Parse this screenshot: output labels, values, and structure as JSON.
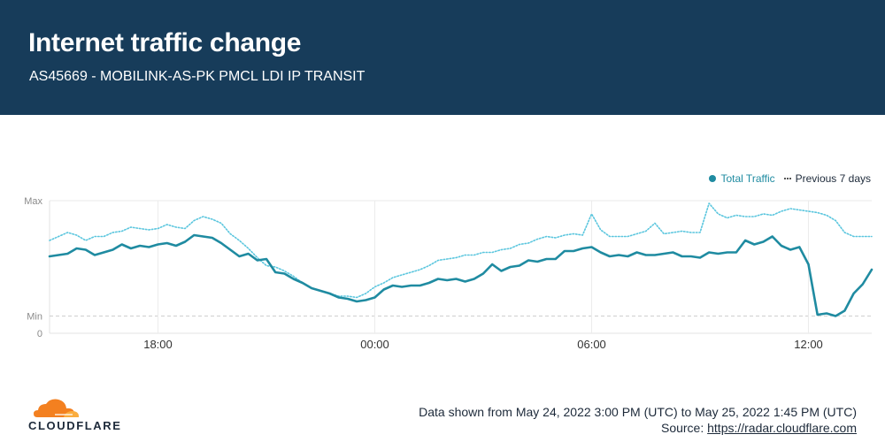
{
  "header": {
    "title": "Internet traffic change",
    "subtitle": "AS45669 - MOBILINK-AS-PK PMCL LDI IP TRANSIT"
  },
  "legend": {
    "items": [
      {
        "label": "Total Traffic",
        "color": "#1f8ba1",
        "style": "dot"
      },
      {
        "label": "Previous 7 days",
        "color": "#555555",
        "style": "dotted"
      }
    ]
  },
  "footer": {
    "range_text": "Data shown from May 24, 2022 3:00 PM (UTC) to May 25, 2022 1:45 PM (UTC)",
    "source_prefix": "Source: ",
    "source_link": "https://radar.cloudflare.com",
    "logo_text": "CLOUDFLARE"
  },
  "chart_data": {
    "type": "line",
    "title": "Internet traffic change",
    "subtitle": "AS45669 - MOBILINK-AS-PK PMCL LDI IP TRANSIT",
    "xlabel": "",
    "ylabel": "",
    "x_start": "15:00",
    "x_end": "13:45",
    "x_ticks": [
      "18:00",
      "00:00",
      "06:00",
      "12:00"
    ],
    "y_tick_labels": [
      "Max",
      "Min",
      "0"
    ],
    "y_scale": "normalized, 0 at bottom, Min and Max reference lines",
    "ylim": [
      0,
      1
    ],
    "min_level": 0.13,
    "max_level": 1.0,
    "legend_position": "top-right",
    "grid": "vertical gridlines at labeled ticks",
    "series": [
      {
        "name": "Total Traffic",
        "color": "#1f8ba1",
        "style": "solid",
        "values": [
          0.58,
          0.59,
          0.6,
          0.64,
          0.63,
          0.59,
          0.61,
          0.63,
          0.67,
          0.64,
          0.66,
          0.65,
          0.67,
          0.68,
          0.66,
          0.69,
          0.74,
          0.73,
          0.72,
          0.68,
          0.63,
          0.58,
          0.6,
          0.55,
          0.56,
          0.46,
          0.45,
          0.41,
          0.38,
          0.34,
          0.32,
          0.3,
          0.27,
          0.26,
          0.24,
          0.25,
          0.27,
          0.33,
          0.36,
          0.35,
          0.36,
          0.36,
          0.38,
          0.41,
          0.4,
          0.41,
          0.39,
          0.41,
          0.45,
          0.52,
          0.47,
          0.5,
          0.51,
          0.55,
          0.54,
          0.56,
          0.56,
          0.62,
          0.62,
          0.64,
          0.65,
          0.61,
          0.58,
          0.59,
          0.58,
          0.61,
          0.59,
          0.59,
          0.6,
          0.61,
          0.58,
          0.58,
          0.57,
          0.61,
          0.6,
          0.61,
          0.61,
          0.7,
          0.67,
          0.69,
          0.73,
          0.66,
          0.63,
          0.65,
          0.52,
          0.14,
          0.15,
          0.13,
          0.17,
          0.3,
          0.37,
          0.48
        ]
      },
      {
        "name": "Previous 7 days",
        "color": "#5bc6de",
        "style": "dotted",
        "values": [
          0.7,
          0.73,
          0.76,
          0.74,
          0.7,
          0.73,
          0.73,
          0.76,
          0.77,
          0.8,
          0.79,
          0.78,
          0.79,
          0.82,
          0.8,
          0.79,
          0.85,
          0.88,
          0.86,
          0.83,
          0.75,
          0.7,
          0.64,
          0.57,
          0.51,
          0.5,
          0.47,
          0.43,
          0.38,
          0.34,
          0.32,
          0.3,
          0.28,
          0.28,
          0.27,
          0.3,
          0.35,
          0.38,
          0.42,
          0.44,
          0.46,
          0.48,
          0.51,
          0.55,
          0.56,
          0.57,
          0.59,
          0.59,
          0.61,
          0.61,
          0.63,
          0.64,
          0.67,
          0.68,
          0.71,
          0.73,
          0.72,
          0.74,
          0.75,
          0.74,
          0.9,
          0.78,
          0.73,
          0.73,
          0.73,
          0.75,
          0.77,
          0.83,
          0.75,
          0.76,
          0.77,
          0.76,
          0.76,
          0.98,
          0.9,
          0.87,
          0.89,
          0.88,
          0.88,
          0.9,
          0.89,
          0.92,
          0.94,
          0.93,
          0.92,
          0.91,
          0.89,
          0.85,
          0.76,
          0.73,
          0.73,
          0.73
        ]
      }
    ]
  }
}
